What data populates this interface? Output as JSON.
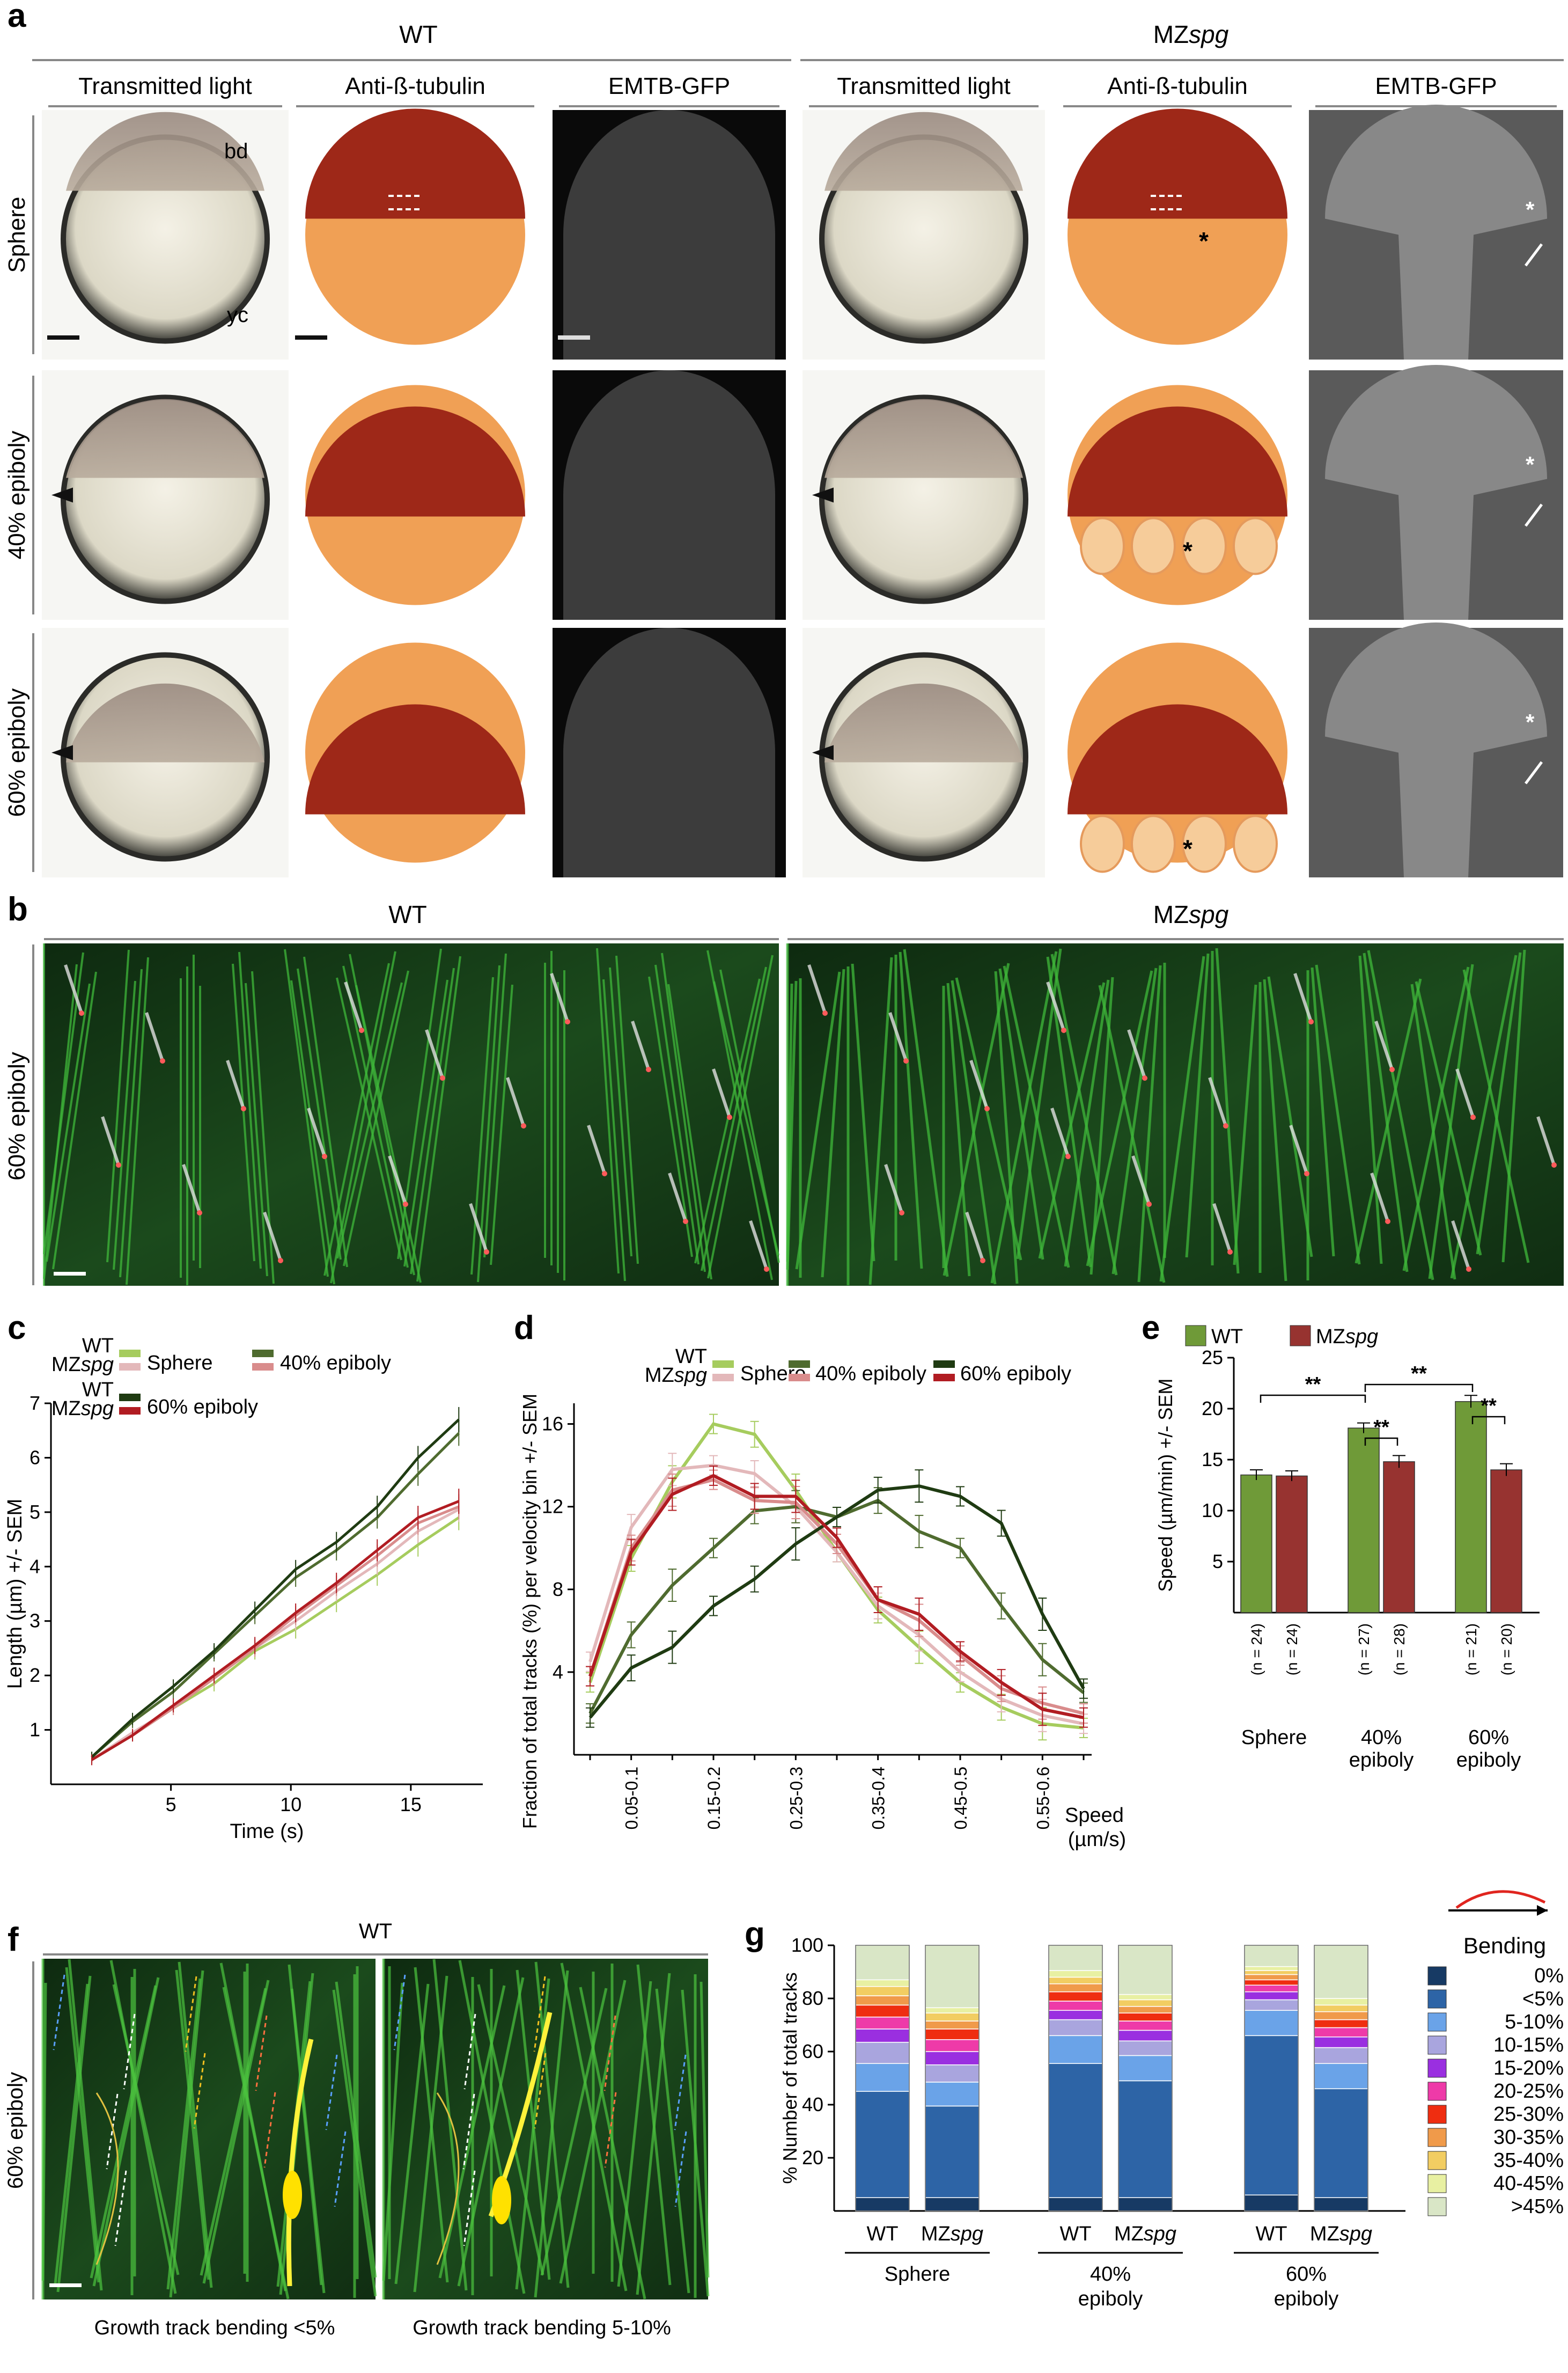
{
  "panel_a": {
    "label": "a",
    "groups": [
      "WT",
      "MZ",
      "spg"
    ],
    "columns": [
      "Transmitted light",
      "Anti-ß-tubulin",
      "EMTB-GFP",
      "Transmitted light",
      "Anti-ß-tubulin",
      "EMTB-GFP"
    ],
    "rows": [
      "Sphere",
      "40% epiboly",
      "60% epiboly"
    ],
    "annotations": {
      "bd": "bd",
      "yc": "yc",
      "star": "*"
    }
  },
  "panel_b": {
    "label": "b",
    "groups": [
      "WT",
      "MZ",
      "spg"
    ],
    "row": "60% epiboly"
  },
  "panel_c": {
    "label": "c",
    "legend": {
      "wt": "WT",
      "mz": "MZ",
      "mz_it": "spg",
      "sphere": "Sphere",
      "e40": "40% epiboly",
      "e60": "60% epiboly"
    },
    "colors": {
      "wt_sphere": "#a6cc5e",
      "mz_sphere": "#e3b8ba",
      "wt_40": "#4f6b2f",
      "mz_40": "#d98c8c",
      "wt_60": "#1f3b12",
      "mz_60": "#b11c22"
    },
    "chart_data": {
      "type": "line",
      "xlabel": "Time (s)",
      "ylabel": "Length (µm) +/- SEM",
      "xlim": [
        0,
        18
      ],
      "ylim": [
        0,
        7
      ],
      "xticks": [
        5,
        10,
        15
      ],
      "yticks": [
        1,
        2,
        3,
        4,
        5,
        6,
        7
      ],
      "x": [
        1.7,
        3.4,
        5.1,
        6.8,
        8.5,
        10.2,
        11.9,
        13.6,
        15.3,
        17.0
      ],
      "series": [
        {
          "key": "wt_sphere",
          "values": [
            0.45,
            0.9,
            1.4,
            1.85,
            2.45,
            2.85,
            3.35,
            3.85,
            4.4,
            4.9
          ]
        },
        {
          "key": "mz_sphere",
          "values": [
            0.45,
            0.95,
            1.4,
            1.95,
            2.5,
            3.0,
            3.55,
            4.05,
            4.65,
            5.05
          ]
        },
        {
          "key": "wt_40",
          "values": [
            0.5,
            1.15,
            1.7,
            2.4,
            3.1,
            3.8,
            4.3,
            4.9,
            5.7,
            6.45
          ]
        },
        {
          "key": "mz_40",
          "values": [
            0.45,
            0.9,
            1.4,
            1.95,
            2.5,
            3.1,
            3.65,
            4.2,
            4.8,
            5.1
          ]
        },
        {
          "key": "wt_60",
          "values": [
            0.5,
            1.2,
            1.8,
            2.45,
            3.2,
            3.95,
            4.45,
            5.1,
            6.0,
            6.7
          ]
        },
        {
          "key": "mz_60",
          "values": [
            0.45,
            0.9,
            1.45,
            2.0,
            2.55,
            3.15,
            3.7,
            4.3,
            4.9,
            5.2
          ]
        }
      ]
    }
  },
  "panel_d": {
    "label": "d",
    "legend": {
      "wt": "WT",
      "mz": "MZ",
      "mz_it": "spg",
      "sphere": "Sphere",
      "e40": "40% epiboly",
      "e60": "60% epiboly"
    },
    "speed_label": "Speed",
    "speed_unit": "(µm/s)",
    "chart_data": {
      "type": "line",
      "ylabel": "Fraction of total tracks (%) per velocity bin +/- SEM",
      "ylim": [
        0,
        17
      ],
      "yticks": [
        4,
        8,
        12,
        16
      ],
      "categories": [
        "",
        "0.05-0.1",
        "",
        "0.15-0.2",
        "",
        "0.25-0.3",
        "",
        "0.35-0.4",
        "",
        "0.45-0.5",
        "",
        "0.55-0.6",
        ""
      ],
      "tick_labels": [
        "0.05-0.1",
        "0.15-0.2",
        "0.25-0.3",
        "0.35-0.4",
        "0.45-0.5",
        "0.55-0.6"
      ],
      "series": [
        {
          "key": "wt_sphere",
          "values": [
            3.5,
            9.5,
            13.2,
            16.0,
            15.5,
            12.8,
            9.8,
            7.0,
            5.2,
            3.5,
            2.3,
            1.5,
            1.3
          ]
        },
        {
          "key": "mz_sphere",
          "values": [
            4.5,
            11.0,
            13.8,
            14.0,
            13.6,
            12.0,
            9.8,
            7.2,
            5.8,
            4.0,
            2.7,
            1.9,
            1.5
          ]
        },
        {
          "key": "wt_40",
          "values": [
            2.0,
            5.8,
            8.2,
            10.0,
            11.8,
            12.0,
            11.5,
            12.3,
            10.8,
            10.0,
            7.2,
            4.6,
            3.0
          ]
        },
        {
          "key": "mz_40",
          "values": [
            3.8,
            10.0,
            12.8,
            13.3,
            12.3,
            12.2,
            10.2,
            7.5,
            6.5,
            4.8,
            3.2,
            2.5,
            2.0
          ]
        },
        {
          "key": "wt_60",
          "values": [
            1.8,
            4.2,
            5.2,
            7.2,
            8.5,
            10.2,
            11.5,
            12.8,
            13.0,
            12.5,
            11.2,
            6.8,
            3.2
          ]
        },
        {
          "key": "mz_60",
          "values": [
            3.8,
            9.8,
            12.6,
            13.5,
            12.5,
            12.5,
            10.5,
            7.5,
            6.8,
            5.0,
            3.5,
            2.2,
            1.8
          ]
        }
      ]
    }
  },
  "panel_e": {
    "label": "e",
    "legend": {
      "wt": "WT",
      "mz": "MZ",
      "mz_it": "spg"
    },
    "colors": {
      "wt": "#6f9a38",
      "mz": "#973330"
    },
    "sig": "**",
    "chart_data": {
      "type": "bar",
      "ylabel": "Speed (µm/min) +/- SEM",
      "ylim": [
        0,
        25
      ],
      "yticks": [
        5,
        10,
        15,
        20,
        25
      ],
      "categories": [
        [
          "Sphere"
        ],
        [
          "40%",
          "epiboly"
        ],
        [
          "60%",
          "epiboly"
        ]
      ],
      "series": [
        {
          "name": "WT",
          "values": [
            13.5,
            18.1,
            20.7
          ],
          "errors": [
            0.5,
            0.5,
            0.6
          ],
          "n": [
            "(n = 24)",
            "(n = 27)",
            "(n = 21)"
          ]
        },
        {
          "name": "MZspg",
          "values": [
            13.4,
            14.8,
            14.0
          ],
          "errors": [
            0.5,
            0.6,
            0.6
          ],
          "n": [
            "(n = 24)",
            "(n = 28)",
            "(n = 20)"
          ]
        }
      ]
    }
  },
  "panel_f": {
    "label": "f",
    "group": "WT",
    "row": "60% epiboly",
    "captions": [
      "Growth track bending <5%",
      "Growth track bending 5-10%"
    ]
  },
  "panel_g": {
    "label": "g",
    "legend_title": "Bending",
    "colors": [
      "#173a64",
      "#2d64a6",
      "#6aa3e8",
      "#a9a5de",
      "#9a2fe0",
      "#ee3aa8",
      "#ef2d10",
      "#f09a4a",
      "#f2cd62",
      "#e8f0a2",
      "#d9e6c6"
    ],
    "chart_data": {
      "type": "bar",
      "stacked": true,
      "ylabel": "% Number of total tracks",
      "ylim": [
        0,
        100
      ],
      "yticks": [
        20,
        40,
        60,
        80,
        100
      ],
      "bins": [
        "0%",
        "<5%",
        "5-10%",
        "10-15%",
        "15-20%",
        "20-25%",
        "25-30%",
        "30-35%",
        "35-40%",
        "40-45%",
        ">45%"
      ],
      "bars": [
        {
          "label": "WT",
          "group": "Sphere",
          "values": [
            5,
            40,
            10.5,
            8,
            5,
            4.5,
            4.5,
            3.5,
            3.5,
            2.5,
            13
          ]
        },
        {
          "label": "MZ",
          "label_it": "spg",
          "group": "Sphere",
          "values": [
            5,
            34.5,
            9,
            6.5,
            5,
            4.5,
            4,
            3,
            3,
            2,
            23.5
          ]
        },
        {
          "label": "WT",
          "group": "40% epiboly",
          "values": [
            5,
            50.5,
            10.5,
            6,
            3.5,
            3.5,
            3.5,
            3,
            2.5,
            2.5,
            9.5
          ]
        },
        {
          "label": "MZ",
          "label_it": "spg",
          "group": "40% epiboly",
          "values": [
            5,
            44,
            9.5,
            5.5,
            4,
            3.5,
            3,
            2.5,
            2.5,
            2,
            18.5
          ]
        },
        {
          "label": "WT",
          "group": "60% epiboly",
          "values": [
            6,
            60,
            9.5,
            4,
            3,
            2.5,
            2,
            2,
            1.5,
            1.5,
            8
          ]
        },
        {
          "label": "MZ",
          "label_it": "spg",
          "group": "60% epiboly",
          "values": [
            5,
            41,
            9.5,
            6,
            4,
            3.5,
            3,
            3,
            2.5,
            2.5,
            20
          ]
        }
      ],
      "groups": [
        [
          "Sphere"
        ],
        [
          "40%",
          "epiboly"
        ],
        [
          "60%",
          "epiboly"
        ]
      ]
    }
  }
}
